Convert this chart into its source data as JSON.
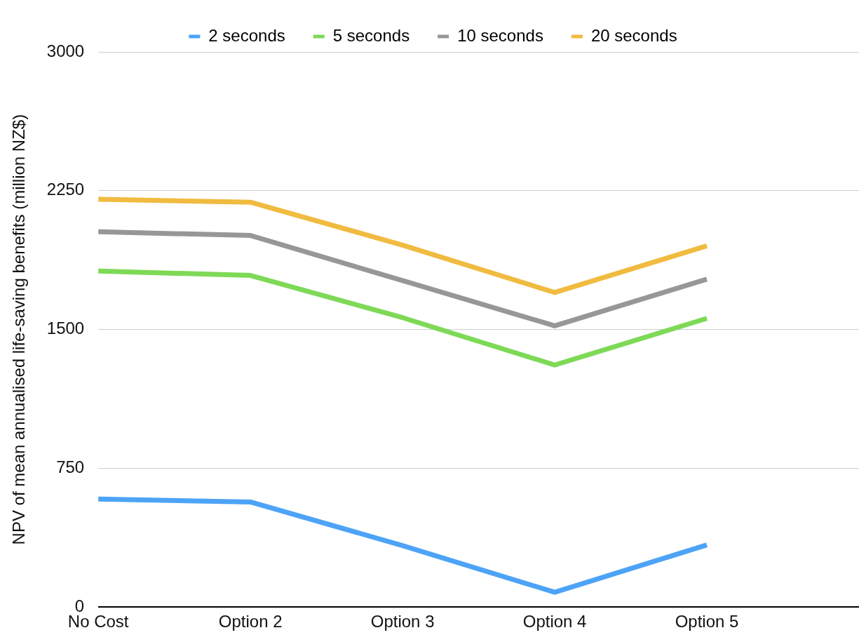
{
  "chart_data": {
    "type": "line",
    "ylabel": "NPV of mean annualised life-saving benefits (million NZ$)",
    "categories": [
      "No Cost",
      "Option 2",
      "Option 3",
      "Option 4",
      "Option 5"
    ],
    "series": [
      {
        "name": "2 seconds",
        "color": "#4da3f7",
        "values": [
          584,
          568,
          332,
          80,
          336
        ]
      },
      {
        "name": "5 seconds",
        "color": "#7ed957",
        "values": [
          1816,
          1792,
          1564,
          1308,
          1560
        ]
      },
      {
        "name": "10 seconds",
        "color": "#979797",
        "values": [
          2028,
          2008,
          1764,
          1520,
          1772
        ]
      },
      {
        "name": "20 seconds",
        "color": "#f0bb40",
        "values": [
          2204,
          2188,
          1956,
          1700,
          1952
        ]
      }
    ],
    "ylim": [
      0,
      3000
    ],
    "yticks": [
      0,
      750,
      1500,
      2250,
      3000
    ],
    "grid": "y",
    "legend": "top",
    "marker": "none",
    "line_style": "solid"
  }
}
